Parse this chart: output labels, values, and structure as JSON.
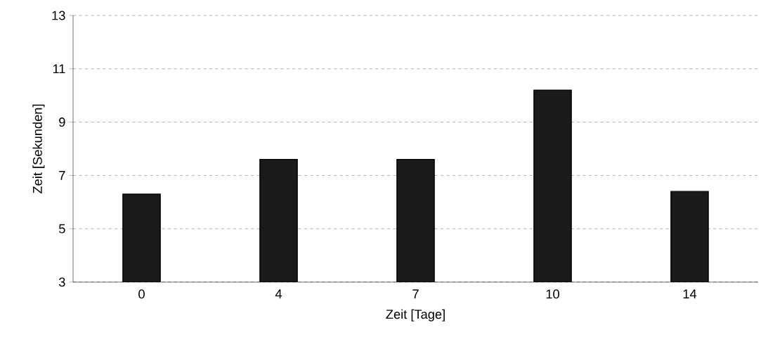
{
  "chart_data": {
    "type": "bar",
    "xlabel": "Zeit [Tage]",
    "ylabel": "Zeit [Sekunden]",
    "categories": [
      "0",
      "4",
      "7",
      "10",
      "14"
    ],
    "values": [
      6.3,
      7.6,
      7.6,
      10.2,
      6.4
    ],
    "color": "#1a1a1a",
    "ylim": [
      3,
      13
    ],
    "yticks": [
      3,
      5,
      7,
      9,
      11,
      13
    ],
    "grid": "y"
  }
}
